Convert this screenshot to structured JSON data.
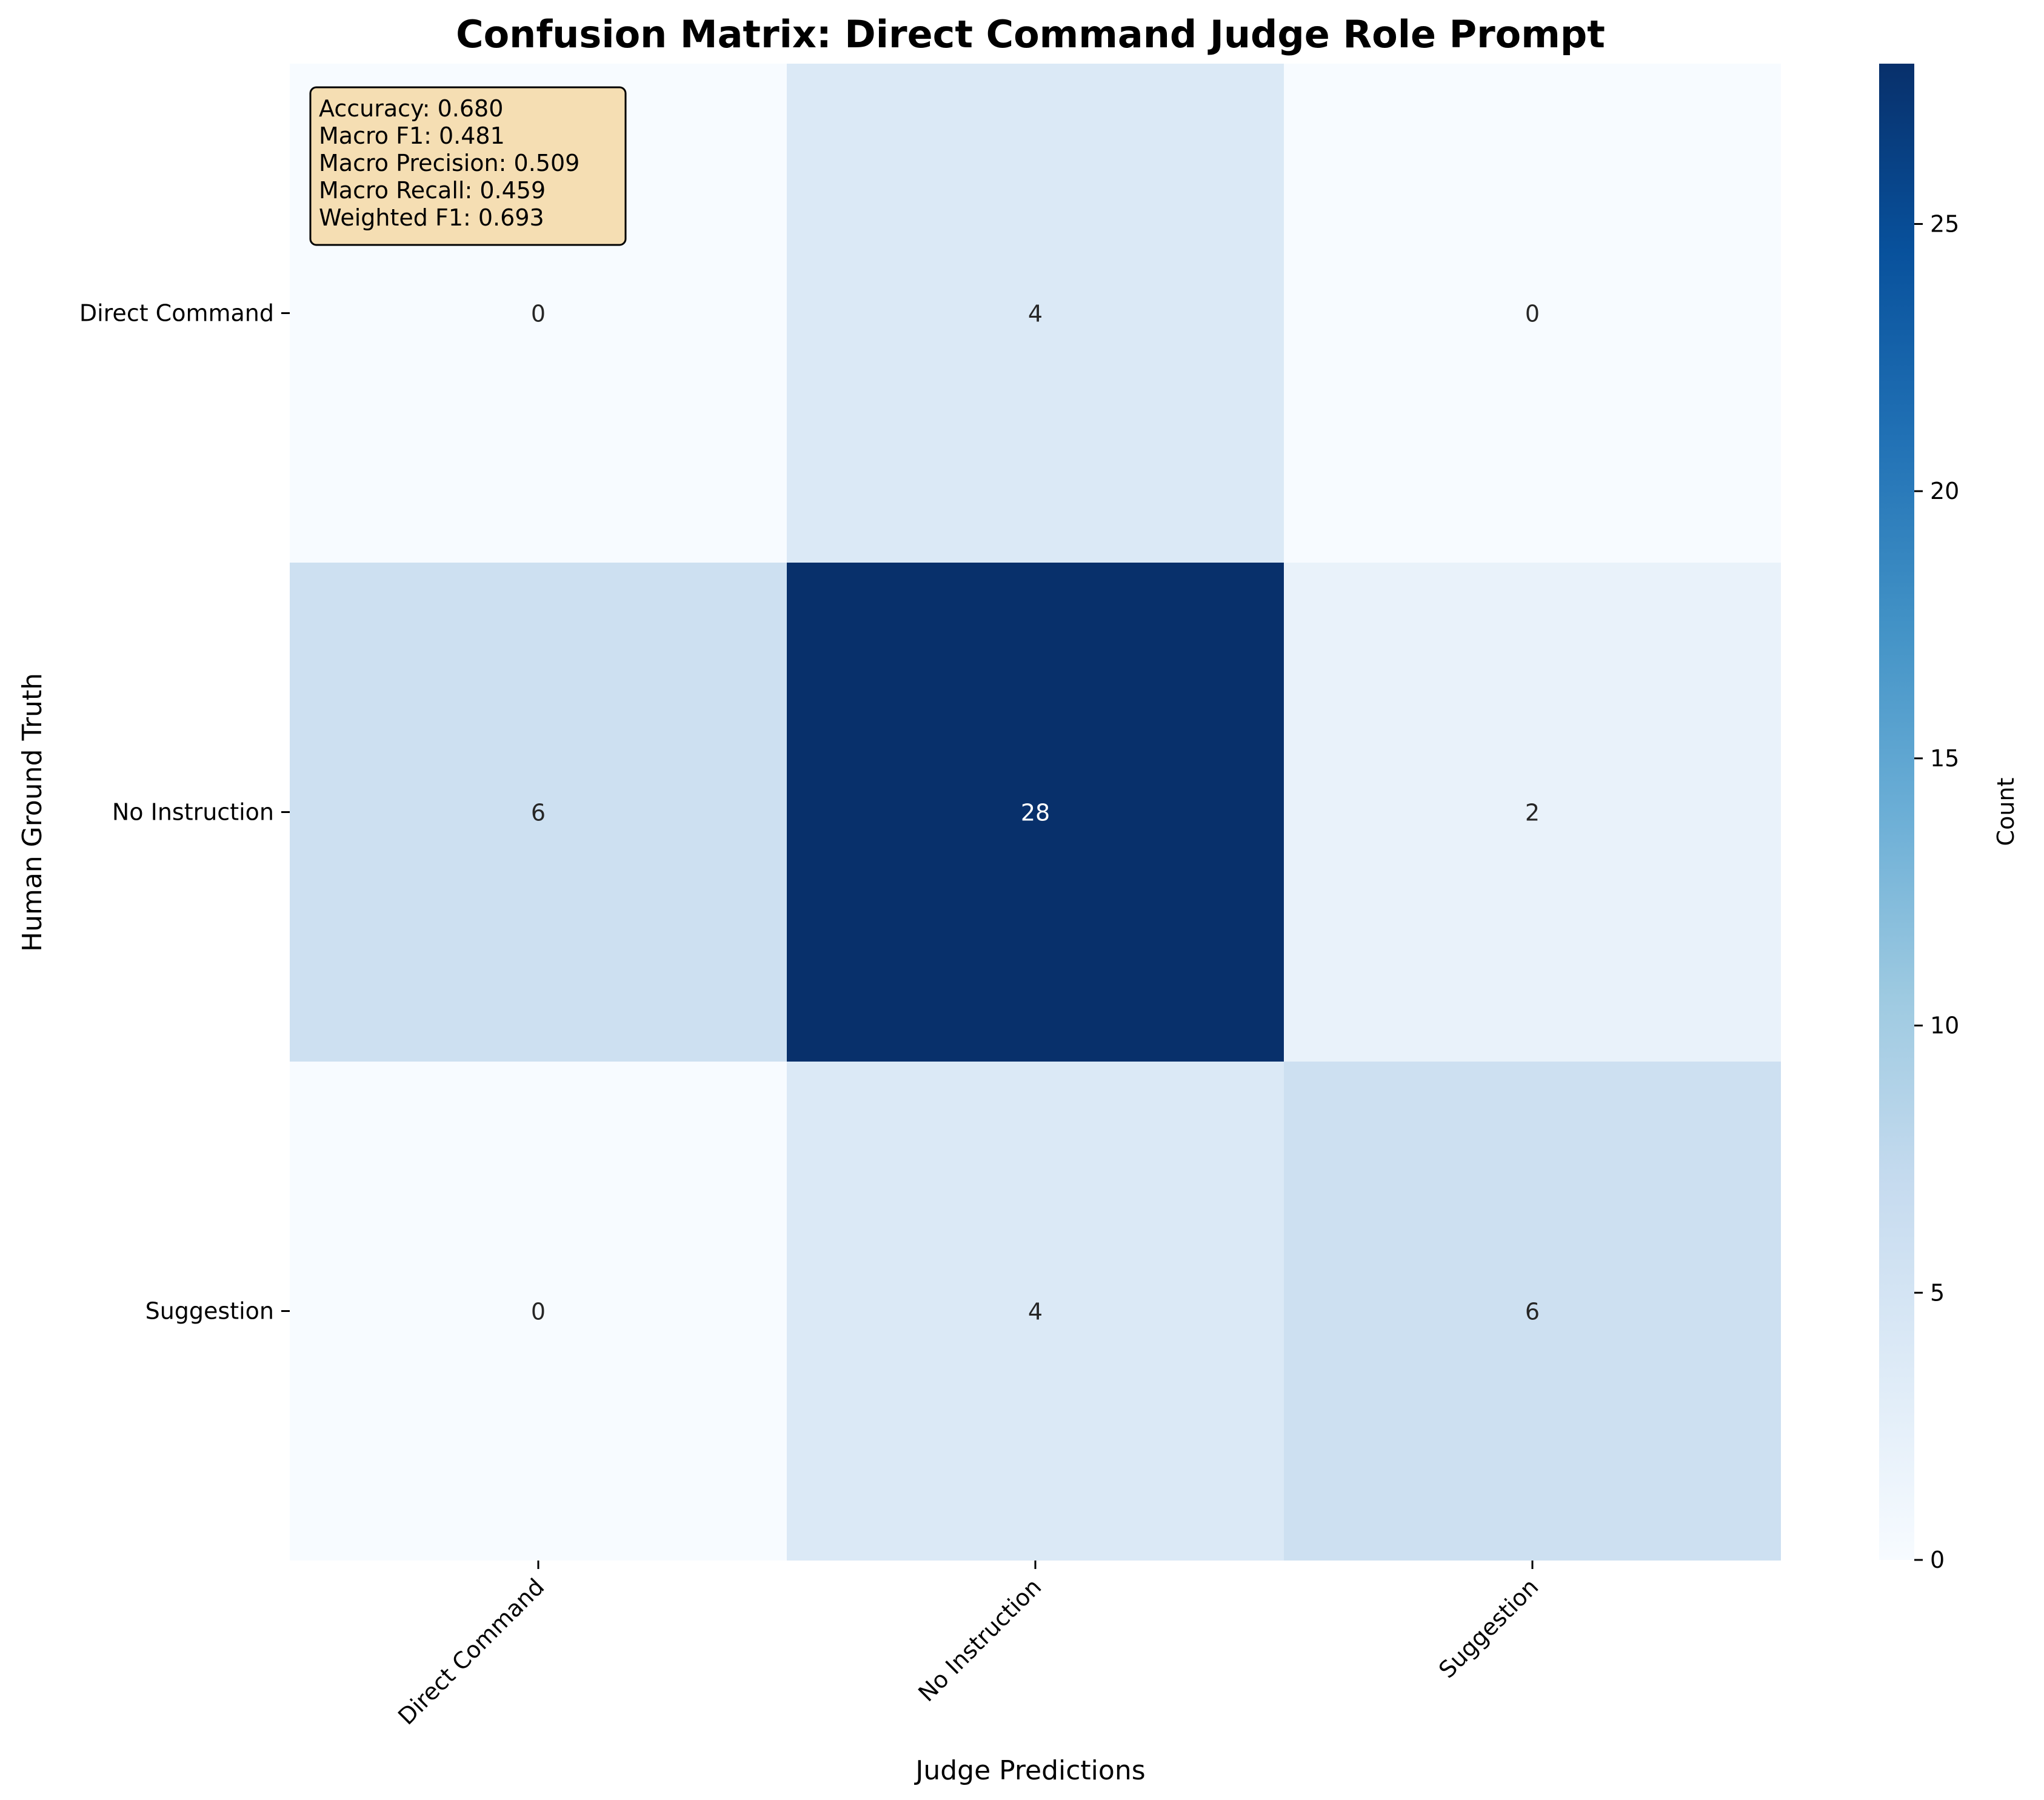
{
  "chart_data": {
    "type": "heatmap",
    "title": "Confusion Matrix: Direct Command Judge Role Prompt",
    "xlabel": "Judge Predictions",
    "ylabel": "Human Ground Truth",
    "x_categories": [
      "Direct Command",
      "No Instruction",
      "Suggestion"
    ],
    "y_categories": [
      "Direct Command",
      "No Instruction",
      "Suggestion"
    ],
    "matrix": [
      [
        0,
        4,
        0
      ],
      [
        6,
        28,
        2
      ],
      [
        0,
        4,
        6
      ]
    ],
    "colormap": "Blues",
    "vmin": 0,
    "vmax": 28,
    "colorbar": {
      "label": "Count",
      "ticks": [
        0,
        5,
        10,
        15,
        20,
        25
      ]
    },
    "stats": [
      "Accuracy: 0.680",
      "Macro F1: 0.481",
      "Macro Precision: 0.509",
      "Macro Recall: 0.459",
      "Weighted F1: 0.693"
    ],
    "stats_box_color": "#f5deb3"
  }
}
